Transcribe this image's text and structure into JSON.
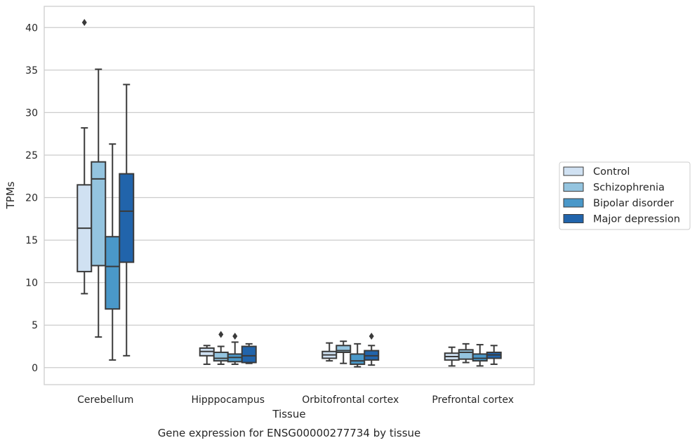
{
  "chart_data": {
    "type": "box",
    "caption": "Gene expression for ENSG00000277734 by tissue",
    "xlabel": "Tissue",
    "ylabel": "TPMs",
    "ylim": [
      -2,
      42.5
    ],
    "yticks": [
      0,
      5,
      10,
      15,
      20,
      25,
      30,
      35,
      40
    ],
    "grid": true,
    "legend_position": "right",
    "categories": [
      "Cerebellum",
      "Hipppocampus",
      "Orbitofrontal cortex",
      "Prefrontal cortex"
    ],
    "series": [
      {
        "name": "Control",
        "color": "#d0e1f2",
        "boxes": [
          {
            "whislo": 8.7,
            "q1": 11.3,
            "med": 16.4,
            "q3": 21.5,
            "whishi": 28.2,
            "fliers": [
              40.6
            ]
          },
          {
            "whislo": 0.4,
            "q1": 1.4,
            "med": 1.9,
            "q3": 2.3,
            "whishi": 2.6,
            "fliers": []
          },
          {
            "whislo": 0.8,
            "q1": 1.1,
            "med": 1.5,
            "q3": 1.9,
            "whishi": 2.9,
            "fliers": []
          },
          {
            "whislo": 0.2,
            "q1": 0.9,
            "med": 1.3,
            "q3": 1.7,
            "whishi": 2.4,
            "fliers": []
          }
        ]
      },
      {
        "name": "Schizophrenia",
        "color": "#94c4df",
        "boxes": [
          {
            "whislo": 3.6,
            "q1": 12.0,
            "med": 22.2,
            "q3": 24.2,
            "whishi": 35.1,
            "fliers": []
          },
          {
            "whislo": 0.4,
            "q1": 0.8,
            "med": 1.1,
            "q3": 1.8,
            "whishi": 2.5,
            "fliers": [
              3.9
            ]
          },
          {
            "whislo": 0.5,
            "q1": 1.8,
            "med": 2.0,
            "q3": 2.6,
            "whishi": 3.1,
            "fliers": []
          },
          {
            "whislo": 0.6,
            "q1": 1.0,
            "med": 1.8,
            "q3": 2.1,
            "whishi": 2.8,
            "fliers": []
          }
        ]
      },
      {
        "name": "Bipolar disorder",
        "color": "#4a98c9",
        "boxes": [
          {
            "whislo": 0.9,
            "q1": 6.9,
            "med": 11.9,
            "q3": 15.4,
            "whishi": 26.3,
            "fliers": []
          },
          {
            "whislo": 0.4,
            "q1": 0.7,
            "med": 1.2,
            "q3": 1.6,
            "whishi": 3.0,
            "fliers": [
              3.7
            ]
          },
          {
            "whislo": 0.1,
            "q1": 0.4,
            "med": 0.8,
            "q3": 1.6,
            "whishi": 2.8,
            "fliers": []
          },
          {
            "whislo": 0.2,
            "q1": 0.8,
            "med": 1.1,
            "q3": 1.6,
            "whishi": 2.7,
            "fliers": []
          }
        ]
      },
      {
        "name": "Major depression",
        "color": "#2164ab",
        "boxes": [
          {
            "whislo": 1.4,
            "q1": 12.4,
            "med": 18.4,
            "q3": 22.8,
            "whishi": 33.3,
            "fliers": []
          },
          {
            "whislo": 0.5,
            "q1": 0.6,
            "med": 1.4,
            "q3": 2.5,
            "whishi": 2.8,
            "fliers": []
          },
          {
            "whislo": 0.3,
            "q1": 0.9,
            "med": 1.4,
            "q3": 2.0,
            "whishi": 2.6,
            "fliers": [
              3.7
            ]
          },
          {
            "whislo": 0.4,
            "q1": 1.1,
            "med": 1.5,
            "q3": 1.8,
            "whishi": 2.6,
            "fliers": []
          }
        ]
      }
    ]
  }
}
